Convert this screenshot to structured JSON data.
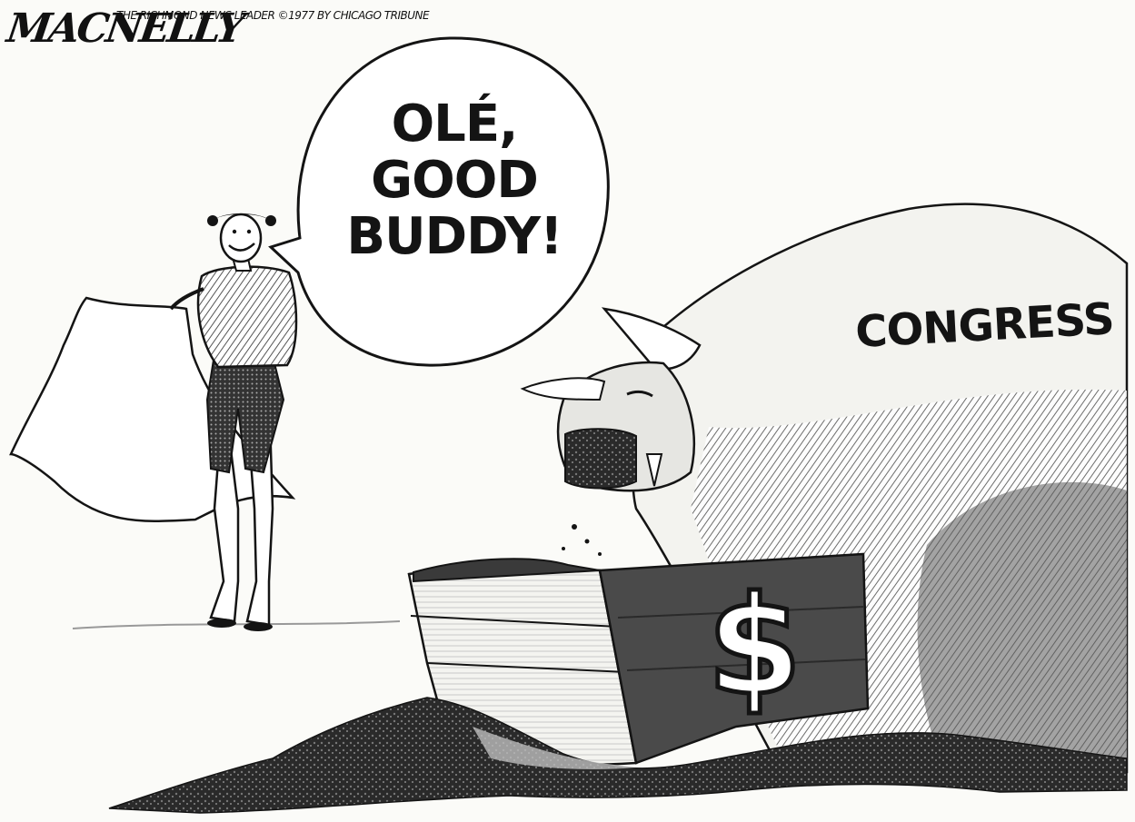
{
  "cartoon": {
    "signature": "MACNELLY",
    "credit": "The Richmond News Leader ©1977 by Chicago Tribune",
    "speech_balloon": {
      "lines": [
        "OLÉ,",
        "GOOD",
        "BUDDY!"
      ]
    },
    "pig_label": "CONGRESS",
    "trough_label": "$",
    "figures": {
      "matador": "matador-figure",
      "pig": "pig-figure",
      "trough": "trough-figure"
    },
    "colors": {
      "ink": "#141414",
      "paper": "#fbfbf8",
      "shade": "#7a7a7a"
    }
  }
}
